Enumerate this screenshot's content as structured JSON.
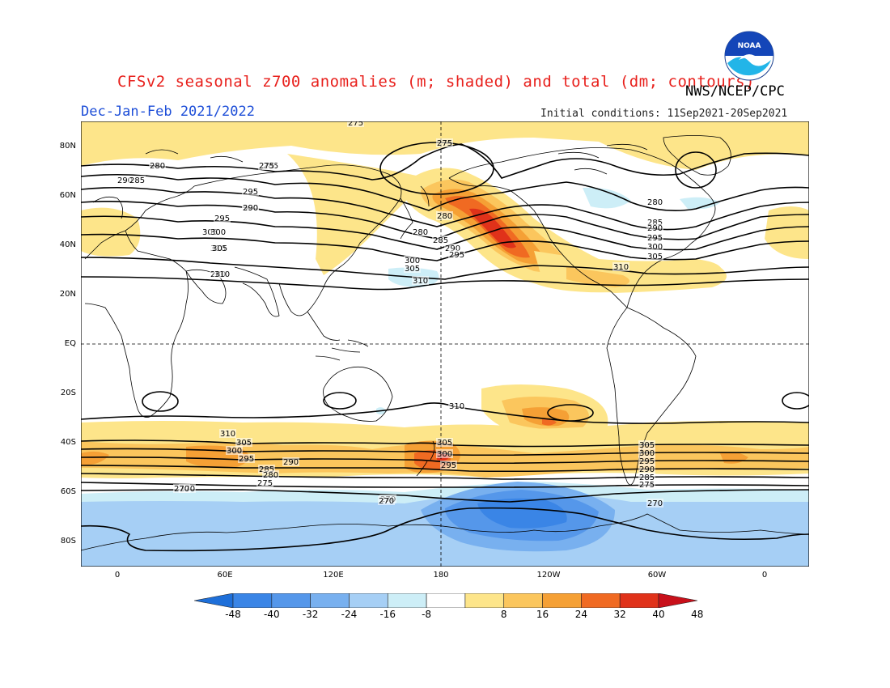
{
  "title": "CFSv2 seasonal z700 anomalies (m; shaded) and total (dm; contours)",
  "agency": "NWS/NCEP/CPC",
  "season": "Dec-Jan-Feb 2021/2022",
  "initial_conditions": "Initial conditions: 11Sep2021-20Sep2021",
  "logo": {
    "icon": "noaa-logo",
    "text": "NOAA"
  },
  "map": {
    "lon_range": [
      -20,
      380
    ],
    "lat_range": [
      -90,
      90
    ],
    "lat_labels": [
      "80N",
      "60N",
      "40N",
      "20N",
      "EQ",
      "20S",
      "40S",
      "60S",
      "80S"
    ],
    "lon_labels": [
      "0",
      "60E",
      "120E",
      "180",
      "120W",
      "60W",
      "0"
    ],
    "anomaly_features": [
      {
        "name": "north-pacific-high",
        "sign": "positive",
        "peak": 44
      },
      {
        "name": "south-pacific-nz-high",
        "sign": "positive",
        "peak": 36
      },
      {
        "name": "south-indian-high",
        "sign": "positive",
        "peak": 28
      },
      {
        "name": "south-atlantic-high",
        "sign": "positive",
        "peak": 20
      },
      {
        "name": "east-pacific-subtropical-high",
        "sign": "positive",
        "peak": 28
      },
      {
        "name": "antarctic-low",
        "sign": "negative",
        "peak": -40
      },
      {
        "name": "canada-low",
        "sign": "negative",
        "peak": -12
      },
      {
        "name": "tropical-pacific-low",
        "sign": "negative",
        "peak": -12
      }
    ],
    "contour_labels": [
      "275",
      "280",
      "285",
      "290",
      "295",
      "300",
      "305",
      "310",
      "280",
      "275",
      "280",
      "285",
      "290",
      "295",
      "300",
      "305",
      "310",
      "280",
      "285",
      "290",
      "295",
      "300",
      "305",
      "310",
      "280",
      "275",
      "285",
      "290",
      "295",
      "300",
      "305",
      "310",
      "310",
      "305",
      "300",
      "295",
      "290",
      "285",
      "275",
      "270",
      "270",
      "270",
      "305",
      "300",
      "295",
      "310",
      "305",
      "300",
      "295",
      "290",
      "285",
      "280",
      "275",
      "270",
      "270"
    ]
  },
  "colorbar": {
    "labels": [
      "-48",
      "-40",
      "-32",
      "-24",
      "-16",
      "-8",
      "8",
      "16",
      "24",
      "32",
      "40",
      "48"
    ],
    "colors": [
      "#1e6fd9",
      "#3a85e6",
      "#5597ea",
      "#78b0ef",
      "#a6cff5",
      "#cdeef7",
      "#ffffff",
      "#fde58a",
      "#fbc65d",
      "#f5a035",
      "#f06a22",
      "#e0321a",
      "#c8101a"
    ]
  }
}
